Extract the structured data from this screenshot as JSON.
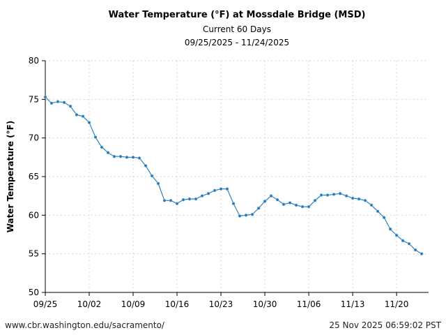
{
  "chart_data": {
    "type": "line",
    "title": "Water Temperature (°F) at Mossdale Bridge (MSD)",
    "subtitle": "Current 60 Days",
    "date_range": "09/25/2025 - 11/24/2025",
    "xlabel": "",
    "ylabel": "Water Temperature (°F)",
    "ylim": [
      50,
      80
    ],
    "yticks": [
      50,
      55,
      60,
      65,
      70,
      75,
      80
    ],
    "xlim": [
      "2025-09-25",
      "2025-11-25"
    ],
    "xticks": [
      {
        "date": "2025-09-25",
        "label": "09/25"
      },
      {
        "date": "2025-10-02",
        "label": "10/02"
      },
      {
        "date": "2025-10-09",
        "label": "10/09"
      },
      {
        "date": "2025-10-16",
        "label": "10/16"
      },
      {
        "date": "2025-10-23",
        "label": "10/23"
      },
      {
        "date": "2025-10-30",
        "label": "10/30"
      },
      {
        "date": "2025-11-06",
        "label": "11/06"
      },
      {
        "date": "2025-11-13",
        "label": "11/13"
      },
      {
        "date": "2025-11-20",
        "label": "11/20"
      }
    ],
    "grid": true,
    "series_color": "#1f77b4",
    "x": [
      "2025-09-25",
      "2025-09-26",
      "2025-09-27",
      "2025-09-28",
      "2025-09-29",
      "2025-09-30",
      "2025-10-01",
      "2025-10-02",
      "2025-10-03",
      "2025-10-04",
      "2025-10-05",
      "2025-10-06",
      "2025-10-07",
      "2025-10-08",
      "2025-10-09",
      "2025-10-10",
      "2025-10-11",
      "2025-10-12",
      "2025-10-13",
      "2025-10-14",
      "2025-10-15",
      "2025-10-16",
      "2025-10-17",
      "2025-10-18",
      "2025-10-19",
      "2025-10-20",
      "2025-10-21",
      "2025-10-22",
      "2025-10-23",
      "2025-10-24",
      "2025-10-25",
      "2025-10-26",
      "2025-10-27",
      "2025-10-28",
      "2025-10-29",
      "2025-10-30",
      "2025-10-31",
      "2025-11-01",
      "2025-11-02",
      "2025-11-03",
      "2025-11-04",
      "2025-11-05",
      "2025-11-06",
      "2025-11-07",
      "2025-11-08",
      "2025-11-09",
      "2025-11-10",
      "2025-11-11",
      "2025-11-12",
      "2025-11-13",
      "2025-11-14",
      "2025-11-15",
      "2025-11-16",
      "2025-11-17",
      "2025-11-18",
      "2025-11-19",
      "2025-11-20",
      "2025-11-21",
      "2025-11-22",
      "2025-11-23",
      "2025-11-24"
    ],
    "values": [
      75.3,
      74.5,
      74.7,
      74.6,
      74.1,
      73.0,
      72.8,
      72.0,
      70.1,
      68.8,
      68.1,
      67.6,
      67.6,
      67.5,
      67.5,
      67.4,
      66.4,
      65.1,
      64.1,
      61.9,
      61.9,
      61.5,
      62.0,
      62.1,
      62.1,
      62.5,
      62.8,
      63.2,
      63.4,
      63.4,
      61.5,
      59.9,
      60.0,
      60.1,
      60.9,
      61.8,
      62.5,
      62.0,
      61.4,
      61.6,
      61.3,
      61.1,
      61.1,
      61.9,
      62.6,
      62.6,
      62.7,
      62.8,
      62.5,
      62.2,
      62.1,
      61.9,
      61.3,
      60.5,
      59.7,
      58.2,
      57.4,
      56.7,
      56.3,
      55.5,
      55.0
    ]
  },
  "footer": {
    "source_url": "www.cbr.washington.edu/sacramento/",
    "timestamp": "25 Nov 2025 06:59:02 PST"
  }
}
